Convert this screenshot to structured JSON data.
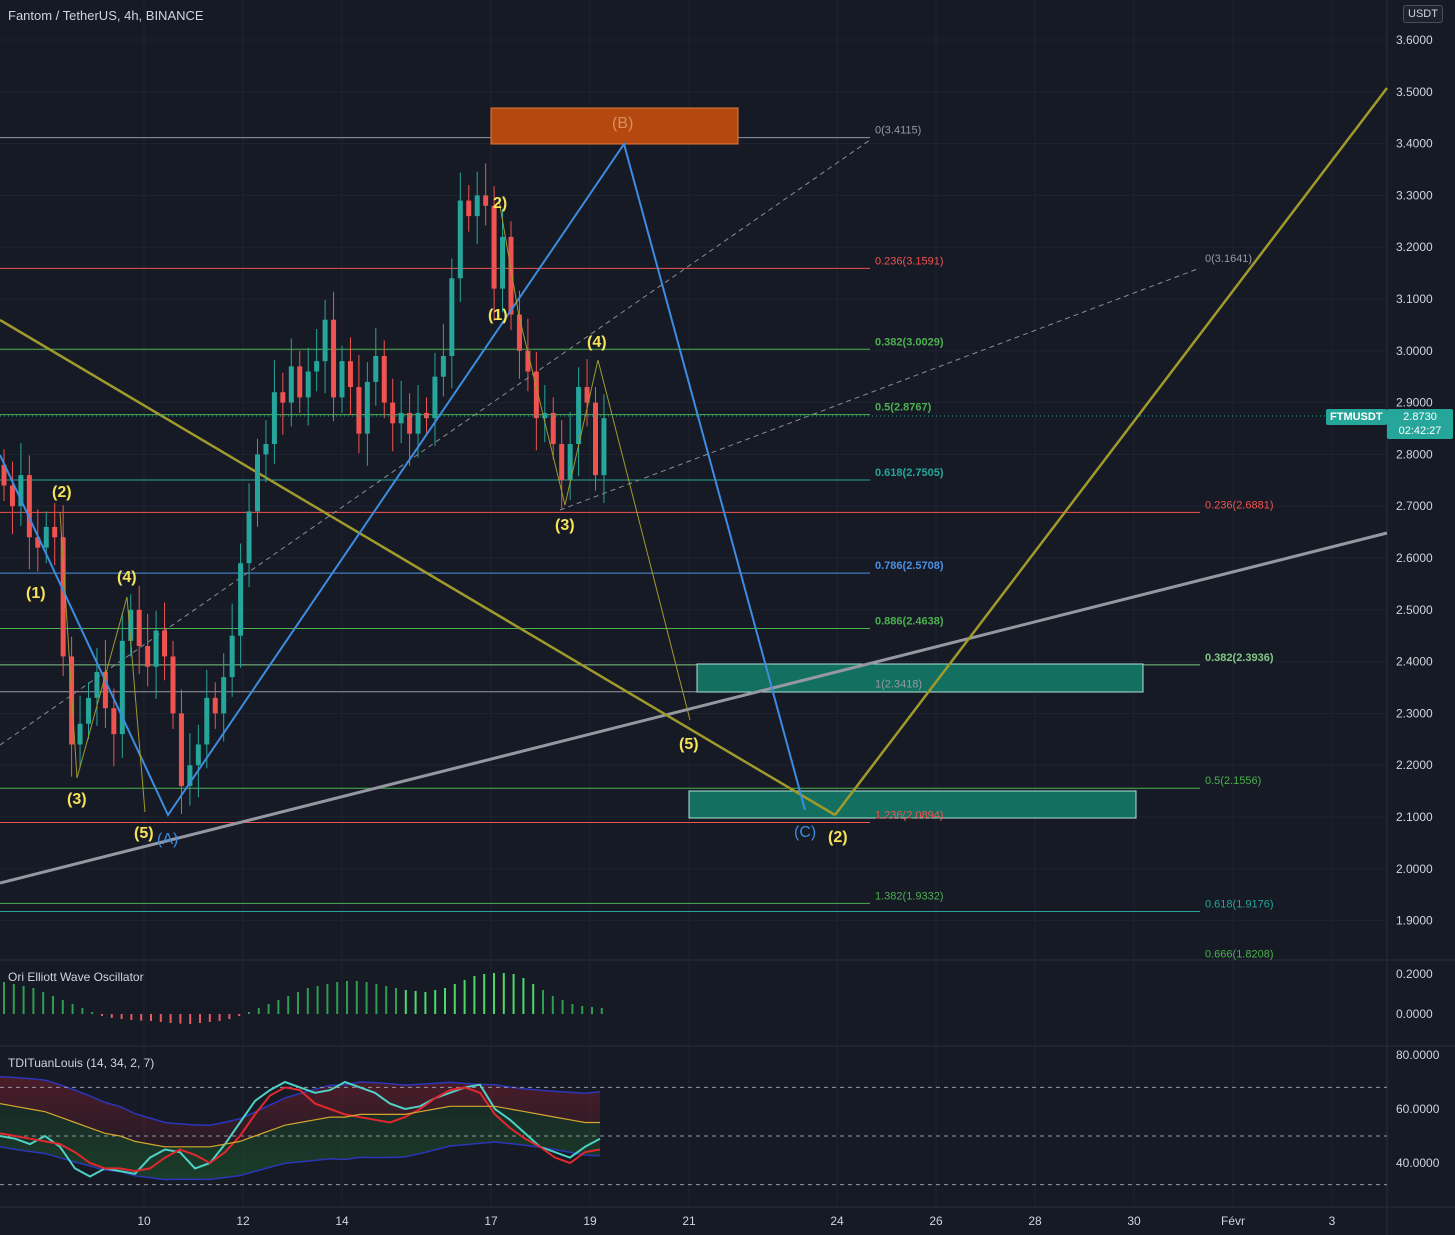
{
  "header": {
    "title": "Fantom / TetherUS, 4h, BINANCE",
    "currency": "USDT"
  },
  "last_price": {
    "symbol": "FTMUSDT",
    "price": "2.8730",
    "countdown": "02:42:27"
  },
  "colors": {
    "background": "#161a25",
    "up": "#26a69a",
    "down": "#ef5350",
    "wave_label": "#f7e35a",
    "abc_line": "#3d8ce0",
    "olive_line": "#a09a2c",
    "gray_line": "#9598a1",
    "orange_box": "#b5480f",
    "teal_box": "#137060"
  },
  "chart_data": [
    {
      "type": "candlestick",
      "title": "Fantom / TetherUS, 4h, BINANCE",
      "x_ticks": [
        "10",
        "12",
        "14",
        "17",
        "19",
        "21",
        "24",
        "26",
        "28",
        "30",
        "Févr",
        "3"
      ],
      "y_ticks": [
        "3.6000",
        "3.5000",
        "3.4000",
        "3.3000",
        "3.2000",
        "3.1000",
        "3.0000",
        "2.9000",
        "2.8000",
        "2.7000",
        "2.6000",
        "2.5000",
        "2.4000",
        "2.3000",
        "2.2000",
        "2.1000",
        "2.0000",
        "1.9000"
      ],
      "ylim": [
        1.82,
        3.64
      ],
      "price_closes": [
        2.74,
        2.7,
        2.76,
        2.64,
        2.62,
        2.66,
        2.64,
        2.41,
        2.24,
        2.28,
        2.33,
        2.38,
        2.31,
        2.26,
        2.44,
        2.5,
        2.43,
        2.39,
        2.46,
        2.41,
        2.3,
        2.16,
        2.2,
        2.24,
        2.33,
        2.3,
        2.37,
        2.45,
        2.59,
        2.69,
        2.8,
        2.82,
        2.92,
        2.9,
        2.97,
        2.91,
        2.96,
        2.98,
        3.06,
        2.91,
        2.98,
        2.93,
        2.84,
        2.94,
        2.99,
        2.9,
        2.86,
        2.88,
        2.84,
        2.88,
        2.87,
        2.95,
        2.99,
        3.14,
        3.29,
        3.26,
        3.3,
        3.28,
        3.12,
        3.22,
        3.07,
        3.0,
        2.96,
        2.87,
        2.88,
        2.82,
        2.75,
        2.82,
        2.93,
        2.9,
        2.76,
        2.87
      ],
      "fib_levels": [
        {
          "label": "0(3.4115)",
          "value": 3.4115
        },
        {
          "label": "0.236(3.1591)",
          "value": 3.1591
        },
        {
          "label": "0.382(3.0029)",
          "value": 3.0029
        },
        {
          "label": "0.5(2.8767)",
          "value": 2.8767
        },
        {
          "label": "0.618(2.7505)",
          "value": 2.7505
        },
        {
          "label": "0.786(2.5708)",
          "value": 2.5708
        },
        {
          "label": "0.886(2.4638)",
          "value": 2.4638
        },
        {
          "label": "1(2.3418)",
          "value": 2.3418
        },
        {
          "label": "1.236(2.0894)",
          "value": 2.0894
        },
        {
          "label": "1.382(1.9332)",
          "value": 1.9332
        },
        {
          "label": "0(3.1641)",
          "value": 3.1641
        },
        {
          "label": "0.236(2.6881)",
          "value": 2.6881
        },
        {
          "label": "0.382(2.3936)",
          "value": 2.3936
        },
        {
          "label": "0.5(2.1556)",
          "value": 2.1556
        },
        {
          "label": "0.618(1.9176)",
          "value": 1.9176
        },
        {
          "label": "0.666(1.8208)",
          "value": 1.8208
        }
      ],
      "wave_labels": [
        "(1)",
        "(2)",
        "(3)",
        "(4)",
        "(5)",
        "(1)",
        "2)",
        "(3)",
        "(4)",
        "(5)",
        "(2)"
      ],
      "abc_labels": [
        "(A)",
        "(B)",
        "(C)"
      ]
    },
    {
      "type": "bar",
      "title": "Ori Elliott Wave Oscillator",
      "y_ticks": [
        "0.2000",
        "0.0000"
      ],
      "ylim": [
        -0.07,
        0.22
      ],
      "values": [
        0.16,
        0.15,
        0.14,
        0.13,
        0.11,
        0.09,
        0.07,
        0.05,
        0.03,
        0.01,
        -0.01,
        -0.02,
        -0.025,
        -0.03,
        -0.033,
        -0.035,
        -0.04,
        -0.045,
        -0.048,
        -0.05,
        -0.045,
        -0.04,
        -0.035,
        -0.025,
        -0.01,
        0.01,
        0.03,
        0.05,
        0.07,
        0.09,
        0.11,
        0.13,
        0.14,
        0.15,
        0.16,
        0.165,
        0.165,
        0.16,
        0.15,
        0.14,
        0.13,
        0.12,
        0.115,
        0.11,
        0.12,
        0.13,
        0.15,
        0.17,
        0.19,
        0.2,
        0.205,
        0.205,
        0.2,
        0.18,
        0.15,
        0.12,
        0.09,
        0.07,
        0.05,
        0.04,
        0.035,
        0.03
      ]
    },
    {
      "type": "line",
      "title": "TDITuanLouis (14, 34, 2, 7)",
      "y_ticks": [
        "80.0000",
        "60.0000",
        "40.0000"
      ],
      "ylim": [
        26,
        81
      ],
      "levels": [
        68,
        50,
        32
      ],
      "series": [
        {
          "name": "",
          "values": [
            50,
            49,
            47,
            50,
            46,
            38,
            35,
            38,
            37,
            36,
            42,
            45,
            44,
            38,
            40,
            47,
            55,
            63,
            67,
            70,
            68,
            66,
            67,
            70,
            68,
            66,
            62,
            60,
            61,
            64,
            66,
            68,
            69,
            60,
            56,
            51,
            46,
            44,
            42,
            46,
            49
          ]
        },
        {
          "name": "",
          "values": [
            51,
            50,
            49,
            48,
            47,
            44,
            40,
            38,
            38,
            37,
            38,
            42,
            45,
            43,
            40,
            44,
            50,
            58,
            65,
            68,
            67,
            62,
            60,
            58,
            57,
            56,
            55,
            57,
            60,
            64,
            67,
            68,
            66,
            58,
            53,
            49,
            46,
            42,
            40,
            44,
            45
          ]
        },
        {
          "name": "",
          "values": [
            62,
            61,
            60,
            59,
            57,
            55,
            53,
            51,
            50,
            48,
            47,
            46,
            46,
            46,
            46,
            47,
            48,
            50,
            52,
            54,
            55,
            56,
            57,
            57,
            58,
            58,
            58,
            58,
            59,
            60,
            61,
            61,
            61,
            61,
            60,
            59,
            58,
            57,
            56,
            55,
            55
          ]
        }
      ]
    }
  ]
}
